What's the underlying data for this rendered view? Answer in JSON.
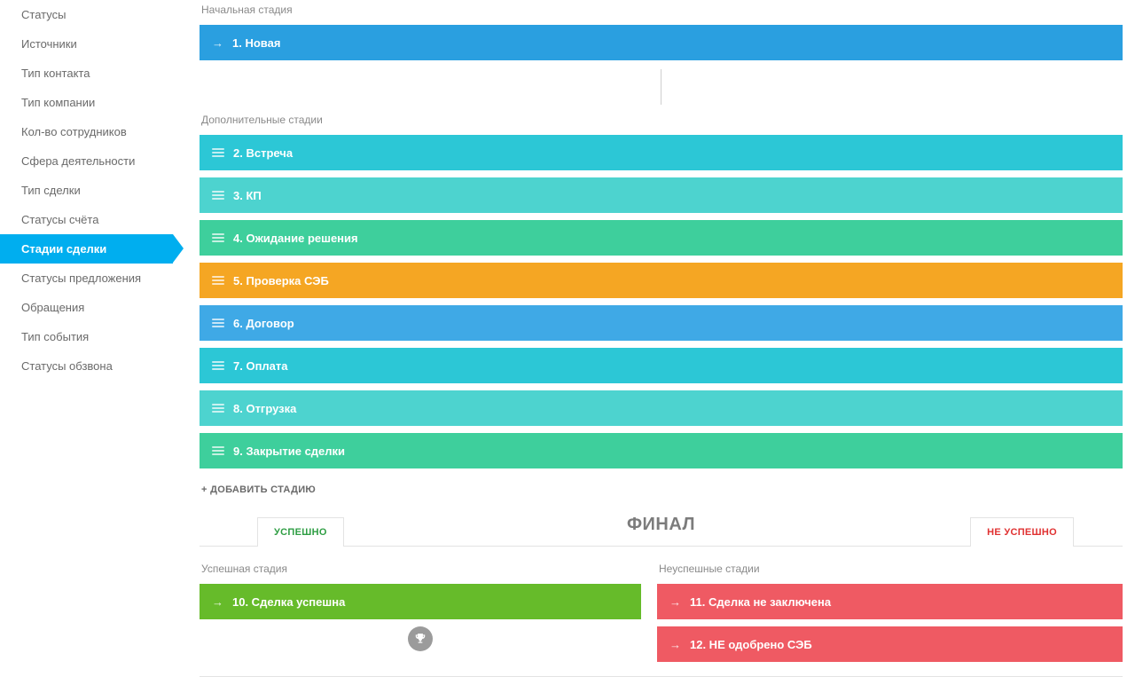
{
  "sidebar": {
    "items": [
      {
        "label": "Статусы",
        "active": false
      },
      {
        "label": "Источники",
        "active": false
      },
      {
        "label": "Тип контакта",
        "active": false
      },
      {
        "label": "Тип компании",
        "active": false
      },
      {
        "label": "Кол-во сотрудников",
        "active": false
      },
      {
        "label": "Сфера деятельности",
        "active": false
      },
      {
        "label": "Тип сделки",
        "active": false
      },
      {
        "label": "Статусы счёта",
        "active": false
      },
      {
        "label": "Стадии сделки",
        "active": true
      },
      {
        "label": "Статусы предложения",
        "active": false
      },
      {
        "label": "Обращения",
        "active": false
      },
      {
        "label": "Тип события",
        "active": false
      },
      {
        "label": "Статусы обзвона",
        "active": false
      }
    ]
  },
  "sections": {
    "initial": {
      "title": "Начальная стадия"
    },
    "additional": {
      "title": "Дополнительные стадии"
    },
    "success": {
      "title": "Успешная стадия"
    },
    "fail": {
      "title": "Неуспешные стадии"
    }
  },
  "stages": {
    "initial": [
      {
        "label": "1. Новая",
        "bg": "#2a9fe0",
        "handle": "arrow"
      }
    ],
    "additional": [
      {
        "label": "2. Встреча",
        "bg": "#2cc7d6",
        "handle": "drag"
      },
      {
        "label": "3. КП",
        "bg": "#4dd3cf",
        "handle": "drag"
      },
      {
        "label": "4. Ожидание решения",
        "bg": "#3ecf9c",
        "handle": "drag"
      },
      {
        "label": "5. Проверка СЭБ",
        "bg": "#f5a623",
        "handle": "drag"
      },
      {
        "label": "6. Договор",
        "bg": "#3fa9e6",
        "handle": "drag"
      },
      {
        "label": "7. Оплата",
        "bg": "#2cc7d6",
        "handle": "drag"
      },
      {
        "label": "8. Отгрузка",
        "bg": "#4dd3cf",
        "handle": "drag"
      },
      {
        "label": "9. Закрытие сделки",
        "bg": "#3ecf9c",
        "handle": "drag"
      }
    ],
    "success": [
      {
        "label": "10. Сделка успешна",
        "bg": "#66bb2a",
        "handle": "arrow"
      }
    ],
    "fail": [
      {
        "label": "11. Сделка не заключена",
        "bg": "#ef5a63",
        "handle": "arrow"
      },
      {
        "label": "12. НЕ одобрено СЭБ",
        "bg": "#ef5a63",
        "handle": "arrow"
      }
    ]
  },
  "buttons": {
    "add_stage": "+ ДОБАВИТЬ СТАДИЮ"
  },
  "final": {
    "title": "ФИНАЛ",
    "tab_success": "УСПЕШНО",
    "tab_fail": "НЕ УСПЕШНО"
  },
  "colors": {
    "sidebar_active": "#00aeef",
    "text": "#6a6a6a",
    "success_text": "#2f9e44",
    "fail_text": "#e03131"
  }
}
